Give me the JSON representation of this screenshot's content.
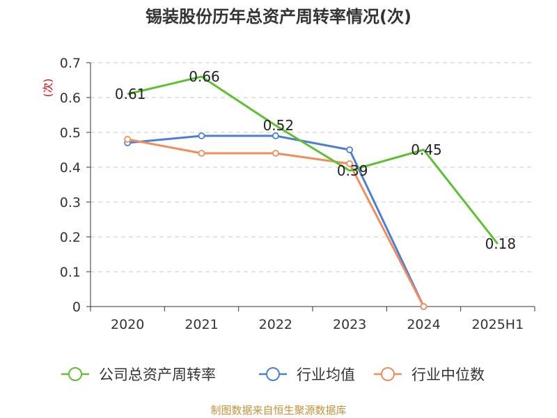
{
  "chart_data": {
    "type": "line",
    "title": "锡装股份历年总资产周转率情况(次)",
    "ylabel": "(次)",
    "categories": [
      "2020",
      "2021",
      "2022",
      "2023",
      "2024",
      "2025H1"
    ],
    "y_ticks": [
      "0",
      "0.1",
      "0.2",
      "0.3",
      "0.4",
      "0.5",
      "0.6",
      "0.7"
    ],
    "ylim": [
      0,
      0.7
    ],
    "grid": true,
    "legend_position": "bottom",
    "series": [
      {
        "name": "公司总资产周转率",
        "color": "#5cc02f",
        "values": [
          0.61,
          0.66,
          0.52,
          0.39,
          0.45,
          0.18
        ],
        "labels": [
          "0.61",
          "0.66",
          "0.52",
          "0.39",
          "0.45",
          "0.18"
        ]
      },
      {
        "name": "行业均值",
        "color": "#4a7fd6",
        "values": [
          0.47,
          0.49,
          0.49,
          0.45,
          0.0,
          null
        ]
      },
      {
        "name": "行业中位数",
        "color": "#f28c5a",
        "values": [
          0.48,
          0.44,
          0.44,
          0.41,
          0.0,
          null
        ]
      }
    ],
    "source": "制图数据来自恒生聚源数据库"
  }
}
